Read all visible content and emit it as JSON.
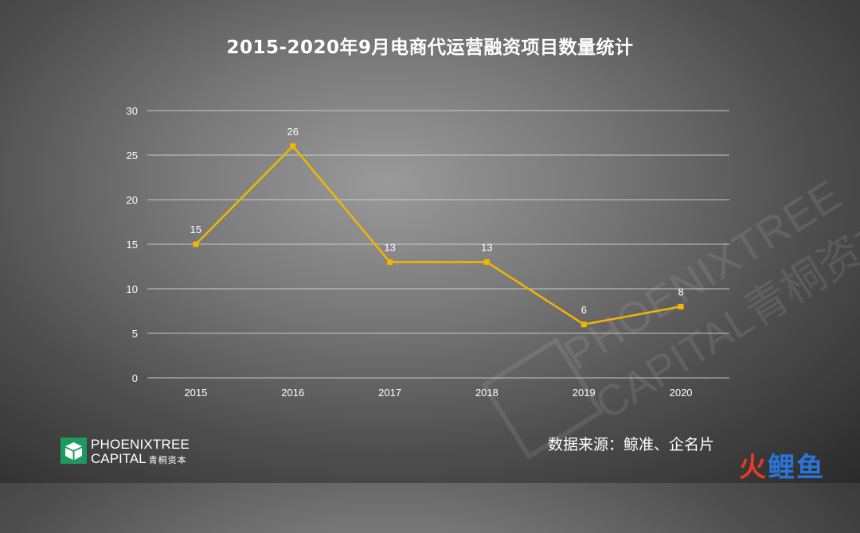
{
  "chart_data": {
    "type": "line",
    "title": "2015-2020年9月电商代运营融资项目数量统计",
    "categories": [
      "2015",
      "2016",
      "2017",
      "2018",
      "2019",
      "2020"
    ],
    "series": [
      {
        "values": [
          15,
          26,
          13,
          13,
          6,
          8
        ]
      }
    ],
    "data_labels": [
      "15",
      "26",
      "13",
      "13",
      "6",
      "8"
    ],
    "ylim": [
      0,
      30
    ],
    "yticks": [
      0,
      5,
      10,
      15,
      20,
      25,
      30
    ],
    "grid": true,
    "xlabel": "",
    "ylabel": "",
    "line_color": "#f2b600",
    "grid_color": "#d8d8d8"
  },
  "footer": {
    "source": "数据来源：鲸准、企名片",
    "logo_name": "PHOENIXTREE",
    "logo_sub": "CAPITAL",
    "logo_cn": "青桐资本",
    "brand_part1": "火",
    "brand_part2": "鲤鱼"
  },
  "watermark": {
    "line1": "PHOENIXTREE",
    "line2": "CAPITAL青桐资本"
  }
}
